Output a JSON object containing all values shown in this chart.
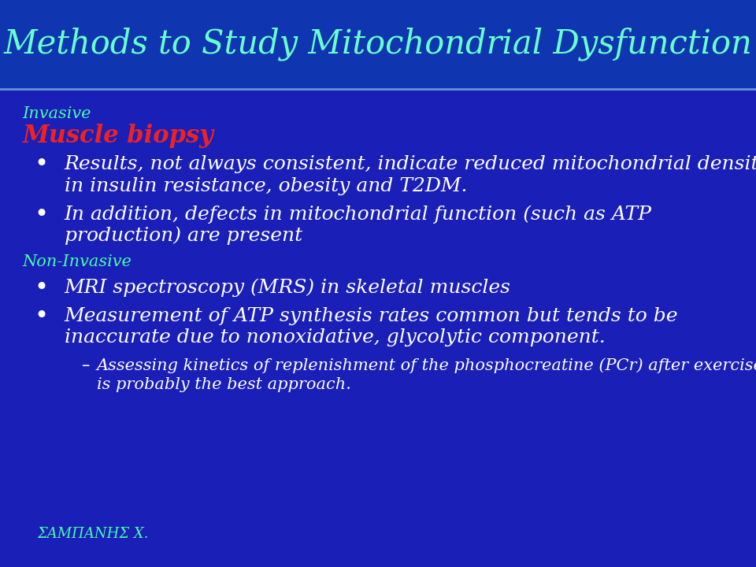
{
  "title": "Methods to Study Mitochondrial Dysfunction",
  "title_color": "#66ffcc",
  "title_bg_color": "#1035b0",
  "bg_color": "#1a1fb8",
  "invasive_label": "Invasive",
  "invasive_color": "#44ffaa",
  "muscle_biopsy_label": "Muscle biopsy",
  "muscle_biopsy_color": "#ee2222",
  "bullet1_line1": "Results, not always consistent, indicate reduced mitochondrial density",
  "bullet1_line2": "in insulin resistance, obesity and T2DM.",
  "bullet2_line1": "In addition, defects in mitochondrial function (such as ATP",
  "bullet2_line2": "production) are present",
  "noninvasive_label": "Non-Invasive",
  "noninvasive_color": "#44ffaa",
  "bullet3": "MRI spectroscopy (MRS) in skeletal muscles",
  "bullet4_line1": "Measurement of ATP synthesis rates common but tends to be",
  "bullet4_line2": "inaccurate due to nonoxidative, glycolytic component.",
  "sub_bullet_line1": "Assessing kinetics of replenishment of the phosphocreatine (PCr) after exercise",
  "sub_bullet_line2": "is probably the best approach.",
  "footer": "ΣΑΜΠΑΝΗΣ Χ.",
  "footer_color": "#44ffaa",
  "white": "#FFFFFF",
  "title_fontsize": 30,
  "label_fontsize": 15,
  "subhead_fontsize": 22,
  "bullet_fontsize": 18,
  "sub_bullet_fontsize": 15,
  "footer_fontsize": 13
}
